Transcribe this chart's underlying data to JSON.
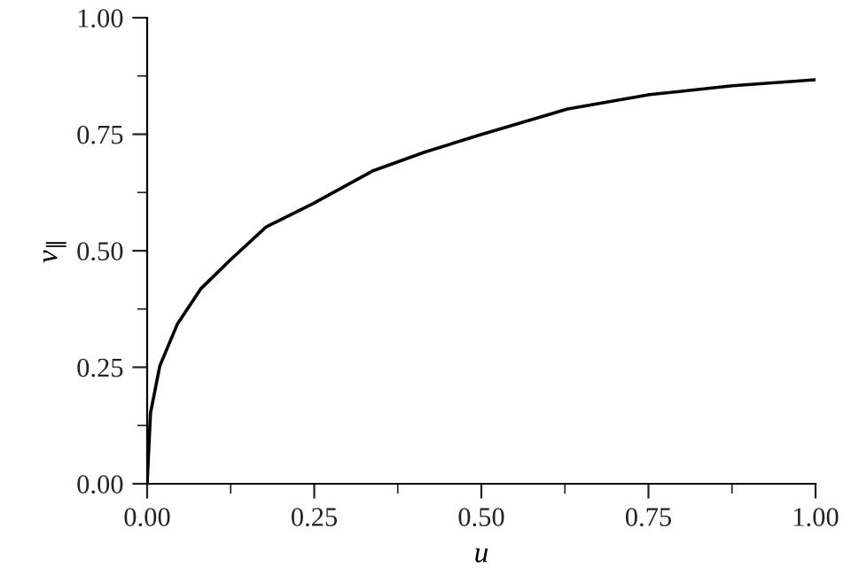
{
  "chart_data": {
    "type": "line",
    "xlabel": "u",
    "ylabel": "v$_{∥}$",
    "x": [
      0,
      0.005,
      0.019,
      0.045,
      0.08,
      0.125,
      0.178,
      0.248,
      0.337,
      0.416,
      0.499,
      0.629,
      0.752,
      0.876,
      1.0
    ],
    "series": [
      {
        "color": "#000000",
        "values": [
          0,
          0.152,
          0.253,
          0.342,
          0.418,
          0.481,
          0.551,
          0.601,
          0.671,
          0.712,
          0.749,
          0.804,
          0.835,
          0.854,
          0.867
        ]
      }
    ],
    "xlim": [
      0,
      1
    ],
    "ylim": [
      0,
      1
    ],
    "xticks": [
      {
        "value": 0,
        "label": "0.00"
      },
      {
        "value": 0.25,
        "label": "0.25"
      },
      {
        "value": 0.5,
        "label": "0.50"
      },
      {
        "value": 0.75,
        "label": "0.75"
      },
      {
        "value": 1,
        "label": "1.00"
      }
    ],
    "yticks": [
      {
        "value": 0,
        "label": "0.00"
      },
      {
        "value": 0.25,
        "label": "0.25"
      },
      {
        "value": 0.5,
        "label": "0.50"
      },
      {
        "value": 0.75,
        "label": "0.75"
      },
      {
        "value": 1,
        "label": "1.00"
      }
    ],
    "grid": false,
    "legend": false,
    "marker": "none",
    "line_style": "solid"
  }
}
